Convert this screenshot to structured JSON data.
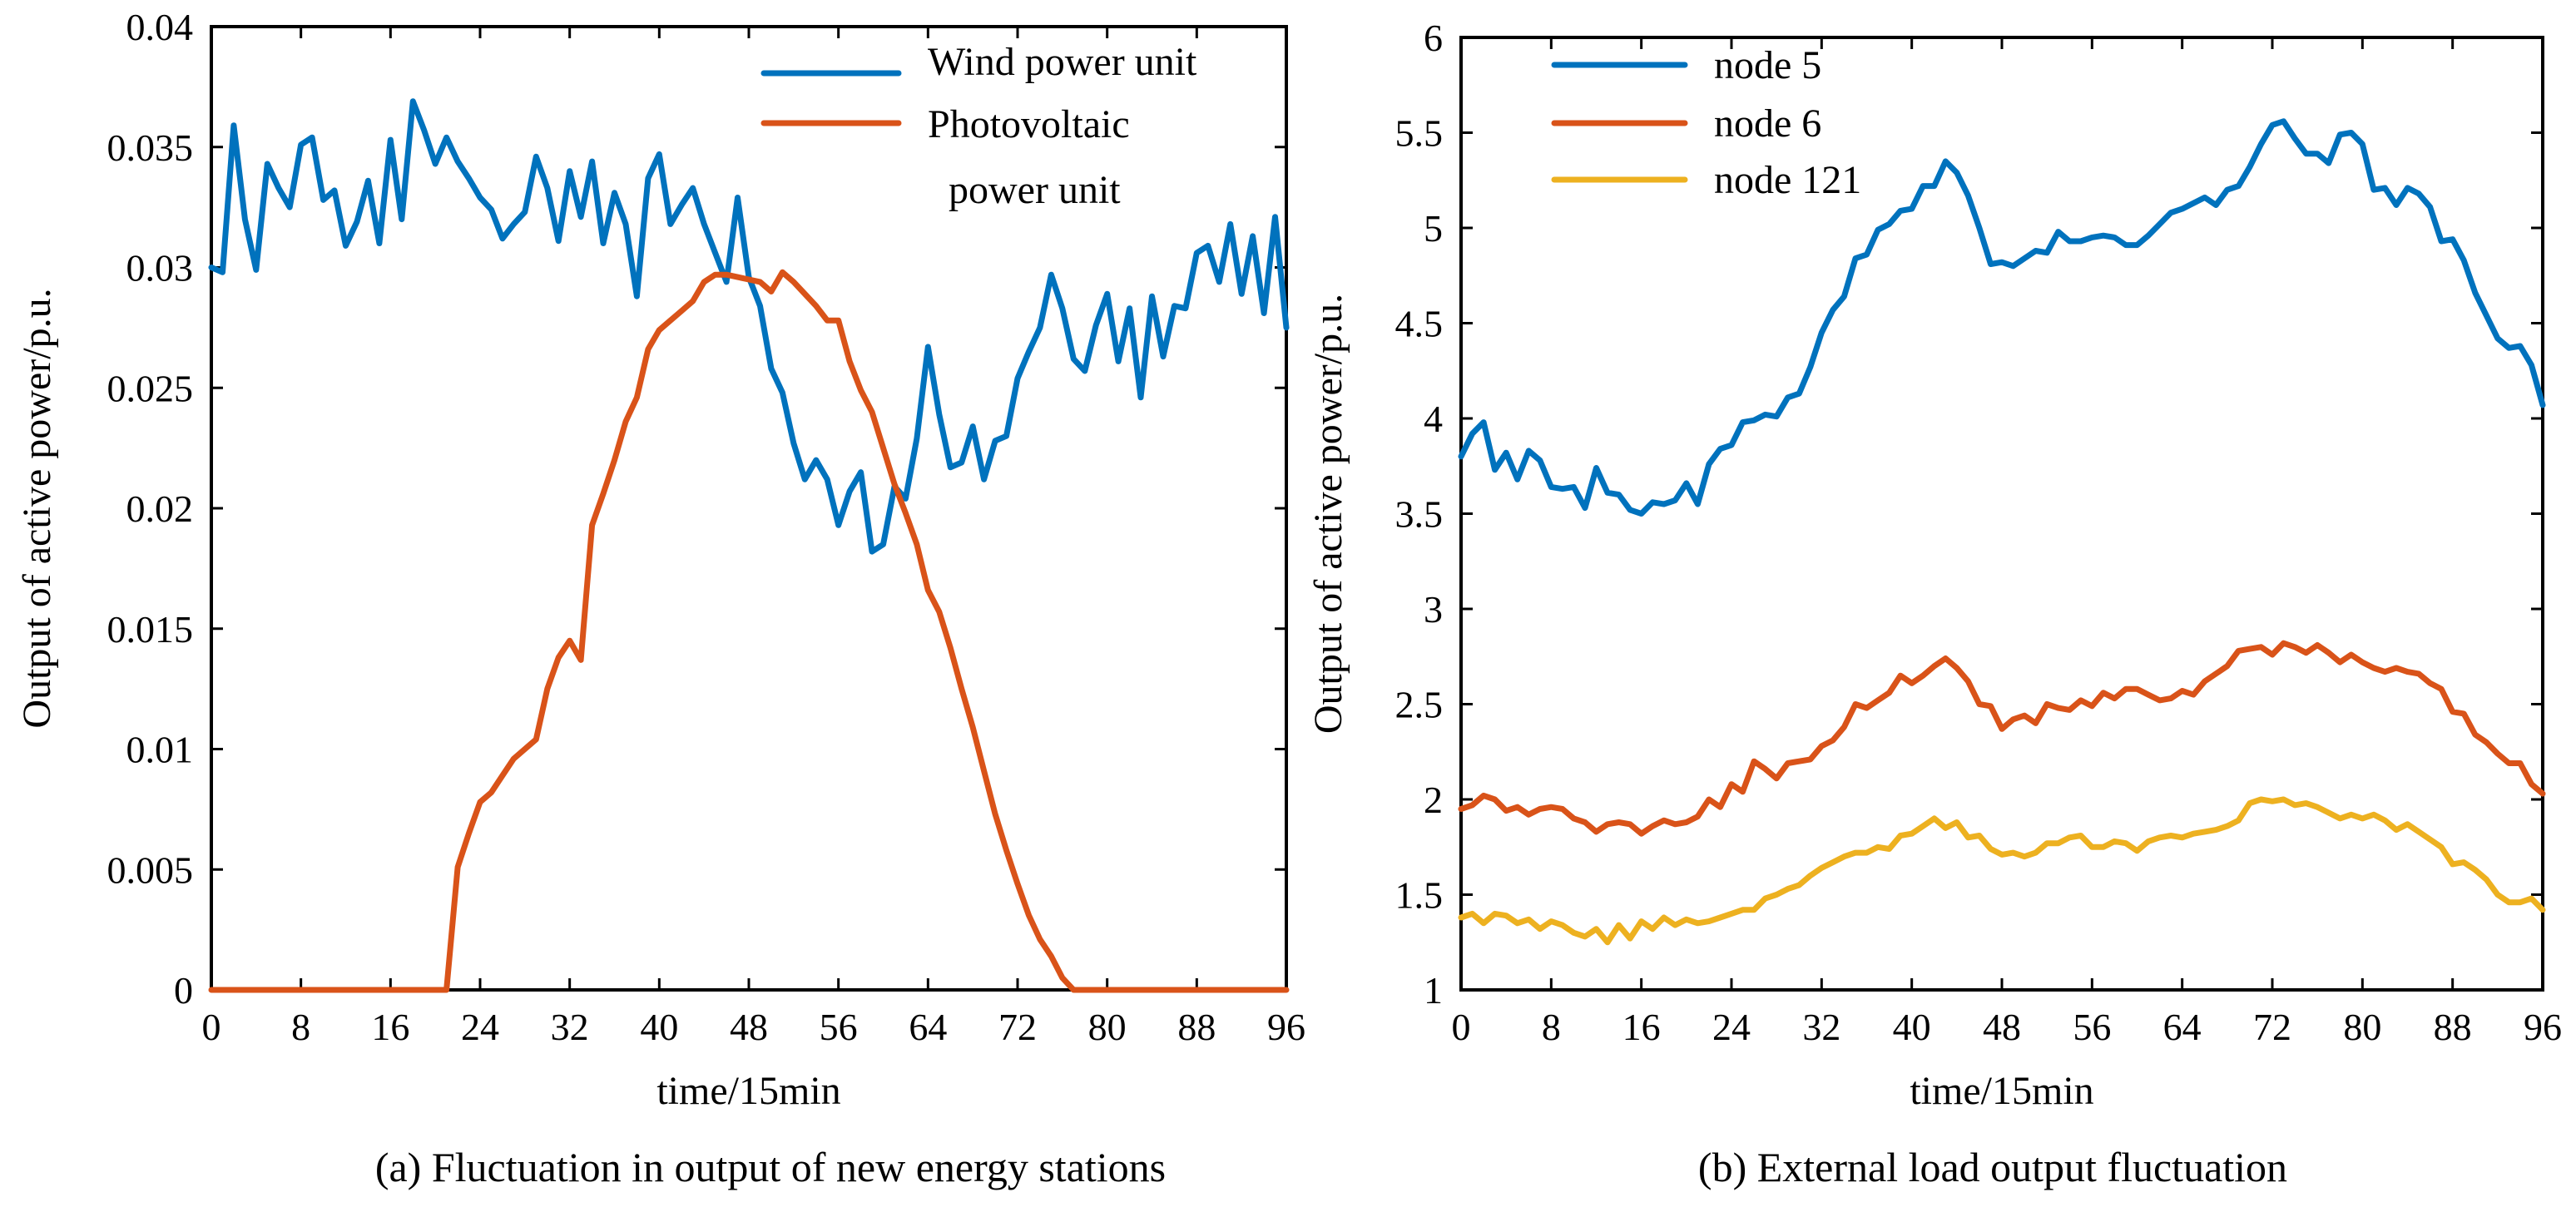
{
  "chart_data": [
    {
      "type": "line",
      "caption": "(a) Fluctuation in output of new energy stations",
      "xlabel": "time/15min",
      "ylabel": "Output of active power/p.u.",
      "xlim": [
        0,
        96
      ],
      "ylim": [
        0,
        0.04
      ],
      "x_ticks": [
        0,
        8,
        16,
        24,
        32,
        40,
        48,
        56,
        64,
        72,
        80,
        88,
        96
      ],
      "x_tick_labels": [
        "0",
        "8",
        "16",
        "24",
        "32",
        "40",
        "48",
        "56",
        "64",
        "72",
        "80",
        "88",
        "96"
      ],
      "y_ticks": [
        0,
        0.005,
        0.01,
        0.015,
        0.02,
        0.025,
        0.03,
        0.035,
        0.04
      ],
      "y_tick_labels": [
        "0",
        "0.005",
        "0.01",
        "0.015",
        "0.02",
        "0.025",
        "0.03",
        "0.035",
        "0.04"
      ],
      "legend_position": "top-right",
      "series": [
        {
          "name": "Wind power unit",
          "legend_lines": [
            "Wind power unit"
          ],
          "color": "#0072BD",
          "values": [
            0.03,
            0.0298,
            0.0359,
            0.032,
            0.0299,
            0.0343,
            0.0333,
            0.0325,
            0.0351,
            0.0354,
            0.0328,
            0.0332,
            0.0309,
            0.0319,
            0.0336,
            0.031,
            0.0353,
            0.032,
            0.0369,
            0.0357,
            0.0343,
            0.0354,
            0.0344,
            0.0337,
            0.0329,
            0.0324,
            0.0312,
            0.0318,
            0.0323,
            0.0346,
            0.0333,
            0.0311,
            0.034,
            0.0321,
            0.0344,
            0.031,
            0.0331,
            0.0318,
            0.0288,
            0.0337,
            0.0347,
            0.0318,
            0.0326,
            0.0333,
            0.0318,
            0.0306,
            0.0294,
            0.0329,
            0.0296,
            0.0284,
            0.0258,
            0.0248,
            0.0227,
            0.0212,
            0.022,
            0.0212,
            0.0193,
            0.0207,
            0.0215,
            0.0182,
            0.0185,
            0.0209,
            0.0204,
            0.0229,
            0.0267,
            0.0239,
            0.0217,
            0.0219,
            0.0234,
            0.0212,
            0.0228,
            0.023,
            0.0254,
            0.0265,
            0.0275,
            0.0297,
            0.0283,
            0.0262,
            0.0257,
            0.0276,
            0.0289,
            0.0261,
            0.0283,
            0.0246,
            0.0288,
            0.0263,
            0.0284,
            0.0283,
            0.0306,
            0.0309,
            0.0294,
            0.0318,
            0.0289,
            0.0313,
            0.0281,
            0.0321,
            0.0275
          ]
        },
        {
          "name": "Photovoltaic power unit",
          "legend_lines": [
            "Photovoltaic",
            "power unit"
          ],
          "color": "#D95319",
          "values": [
            0,
            0,
            0,
            0,
            0,
            0,
            0,
            0,
            0,
            0,
            0,
            0,
            0,
            0,
            0,
            0,
            0,
            0,
            0,
            0,
            0,
            0,
            0.0051,
            0.0065,
            0.0078,
            0.0082,
            0.0089,
            0.0096,
            0.01,
            0.0104,
            0.0125,
            0.0138,
            0.0145,
            0.0137,
            0.0193,
            0.0206,
            0.022,
            0.0236,
            0.0246,
            0.0266,
            0.0274,
            0.0278,
            0.0282,
            0.0286,
            0.0294,
            0.0297,
            0.0297,
            0.0296,
            0.0295,
            0.0294,
            0.029,
            0.0298,
            0.0294,
            0.0289,
            0.0284,
            0.0278,
            0.0278,
            0.0261,
            0.0249,
            0.024,
            0.0225,
            0.021,
            0.0198,
            0.0185,
            0.0166,
            0.0157,
            0.0142,
            0.0125,
            0.0109,
            0.0091,
            0.0073,
            0.0058,
            0.0044,
            0.0031,
            0.0021,
            0.0014,
            0.0005,
            0,
            0,
            0,
            0,
            0,
            0,
            0,
            0,
            0,
            0,
            0,
            0,
            0,
            0,
            0,
            0,
            0,
            0,
            0,
            0
          ]
        }
      ]
    },
    {
      "type": "line",
      "caption": "(b) External load output fluctuation",
      "xlabel": "time/15min",
      "ylabel": "Output of active power/p.u.",
      "xlim": [
        0,
        96
      ],
      "ylim": [
        1,
        6
      ],
      "x_ticks": [
        0,
        8,
        16,
        24,
        32,
        40,
        48,
        56,
        64,
        72,
        80,
        88,
        96
      ],
      "x_tick_labels": [
        "0",
        "8",
        "16",
        "24",
        "32",
        "40",
        "48",
        "56",
        "64",
        "72",
        "80",
        "88",
        "96"
      ],
      "y_ticks": [
        1,
        1.5,
        2,
        2.5,
        3,
        3.5,
        4,
        4.5,
        5,
        5.5,
        6
      ],
      "y_tick_labels": [
        "1",
        "1.5",
        "2",
        "2.5",
        "3",
        "3.5",
        "4",
        "4.5",
        "5",
        "5.5",
        "6"
      ],
      "legend_position": "top-left",
      "series": [
        {
          "name": "node 5",
          "legend_lines": [
            "node 5"
          ],
          "color": "#0072BD",
          "values": [
            3.8,
            3.92,
            3.98,
            3.73,
            3.82,
            3.68,
            3.83,
            3.78,
            3.64,
            3.63,
            3.64,
            3.53,
            3.74,
            3.61,
            3.6,
            3.52,
            3.5,
            3.56,
            3.55,
            3.57,
            3.66,
            3.55,
            3.76,
            3.84,
            3.86,
            3.98,
            3.99,
            4.02,
            4.01,
            4.11,
            4.13,
            4.27,
            4.45,
            4.57,
            4.64,
            4.84,
            4.86,
            4.99,
            5.02,
            5.09,
            5.1,
            5.22,
            5.22,
            5.35,
            5.29,
            5.17,
            5,
            4.81,
            4.82,
            4.8,
            4.84,
            4.88,
            4.87,
            4.98,
            4.93,
            4.93,
            4.95,
            4.96,
            4.95,
            4.91,
            4.91,
            4.96,
            5.02,
            5.08,
            5.1,
            5.13,
            5.16,
            5.12,
            5.2,
            5.22,
            5.32,
            5.44,
            5.54,
            5.56,
            5.47,
            5.39,
            5.39,
            5.34,
            5.49,
            5.5,
            5.44,
            5.2,
            5.21,
            5.12,
            5.21,
            5.18,
            5.11,
            4.93,
            4.94,
            4.83,
            4.66,
            4.54,
            4.42,
            4.37,
            4.38,
            4.28,
            4.07
          ]
        },
        {
          "name": "node 6",
          "legend_lines": [
            "node 6"
          ],
          "color": "#D95319",
          "values": [
            1.95,
            1.97,
            2.02,
            2,
            1.94,
            1.96,
            1.92,
            1.95,
            1.96,
            1.95,
            1.9,
            1.88,
            1.83,
            1.87,
            1.88,
            1.87,
            1.82,
            1.86,
            1.89,
            1.87,
            1.88,
            1.91,
            2,
            1.96,
            2.08,
            2.04,
            2.2,
            2.16,
            2.11,
            2.19,
            2.2,
            2.21,
            2.28,
            2.31,
            2.38,
            2.5,
            2.48,
            2.52,
            2.56,
            2.65,
            2.61,
            2.65,
            2.7,
            2.74,
            2.69,
            2.62,
            2.5,
            2.49,
            2.37,
            2.42,
            2.44,
            2.4,
            2.5,
            2.48,
            2.47,
            2.52,
            2.49,
            2.56,
            2.53,
            2.58,
            2.58,
            2.55,
            2.52,
            2.53,
            2.57,
            2.55,
            2.62,
            2.66,
            2.7,
            2.78,
            2.79,
            2.8,
            2.76,
            2.82,
            2.8,
            2.77,
            2.81,
            2.77,
            2.72,
            2.76,
            2.72,
            2.69,
            2.67,
            2.69,
            2.67,
            2.66,
            2.61,
            2.58,
            2.46,
            2.45,
            2.34,
            2.3,
            2.24,
            2.19,
            2.19,
            2.08,
            2.03
          ]
        },
        {
          "name": "node 121",
          "legend_lines": [
            "node 121"
          ],
          "color": "#EDB120",
          "values": [
            1.38,
            1.4,
            1.35,
            1.4,
            1.39,
            1.35,
            1.37,
            1.32,
            1.36,
            1.34,
            1.3,
            1.28,
            1.32,
            1.25,
            1.34,
            1.27,
            1.36,
            1.32,
            1.38,
            1.34,
            1.37,
            1.35,
            1.36,
            1.38,
            1.4,
            1.42,
            1.42,
            1.48,
            1.5,
            1.53,
            1.55,
            1.6,
            1.64,
            1.67,
            1.7,
            1.72,
            1.72,
            1.75,
            1.74,
            1.81,
            1.82,
            1.86,
            1.9,
            1.85,
            1.88,
            1.8,
            1.81,
            1.74,
            1.71,
            1.72,
            1.7,
            1.72,
            1.77,
            1.77,
            1.8,
            1.81,
            1.75,
            1.75,
            1.78,
            1.77,
            1.73,
            1.78,
            1.8,
            1.81,
            1.8,
            1.82,
            1.83,
            1.84,
            1.86,
            1.89,
            1.98,
            2,
            1.99,
            2,
            1.97,
            1.98,
            1.96,
            1.93,
            1.9,
            1.92,
            1.9,
            1.92,
            1.89,
            1.84,
            1.87,
            1.83,
            1.79,
            1.75,
            1.66,
            1.67,
            1.63,
            1.58,
            1.5,
            1.46,
            1.46,
            1.48,
            1.42
          ]
        }
      ]
    }
  ]
}
